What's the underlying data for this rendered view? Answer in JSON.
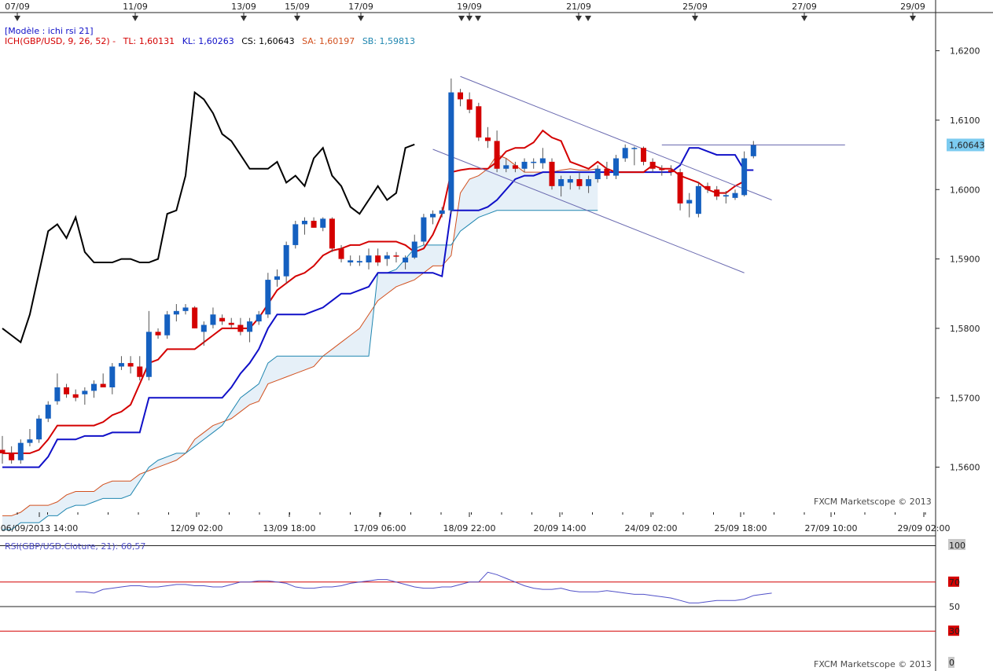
{
  "chart_data": [
    {
      "type": "candlestick",
      "instrument": "GBP/USD",
      "model_label": "[Modèle : ichi rsi 21]",
      "indicator_label": "ICH(GBP/USD, 9, 26, 52) -",
      "legend": [
        {
          "key": "TL",
          "text": "TL: 1,60131",
          "color": "#d40000"
        },
        {
          "key": "KL",
          "text": "KL: 1,60263",
          "color": "#1010c8"
        },
        {
          "key": "CS",
          "text": "CS: 1,60643",
          "color": "#000000"
        },
        {
          "key": "SA",
          "text": "SA: 1,60197",
          "color": "#d2501e"
        },
        {
          "key": "SB",
          "text": "SB: 1,59813",
          "color": "#1f86b0"
        }
      ],
      "ylim": [
        1.5535,
        1.6255
      ],
      "yticks": [
        "1,6200",
        "1,6100",
        "1,6000",
        "1,5900",
        "1,5800",
        "1,5700",
        "1,5600"
      ],
      "ytick_values": [
        1.62,
        1.61,
        1.6,
        1.59,
        1.58,
        1.57,
        1.56
      ],
      "current_price_label": "1,60643",
      "current_price": 1.60643,
      "top_dates": [
        "07/09",
        "11/09",
        "13/09",
        "15/09",
        "17/09",
        "19/09",
        "21/09",
        "25/09",
        "27/09",
        "29/09"
      ],
      "bottom_dates": [
        "06/09/2013 14:00",
        "12/09 02:00",
        "13/09 18:00",
        "17/09 06:00",
        "18/09 22:00",
        "20/09 14:00",
        "24/09 02:00",
        "25/09 18:00",
        "27/09 10:00",
        "29/09 02:00"
      ],
      "watermark": "FXCM Marketscope © 2013",
      "candles": [
        {
          "o": 1.5625,
          "h": 1.5645,
          "l": 1.5605,
          "c": 1.562
        },
        {
          "o": 1.562,
          "h": 1.563,
          "l": 1.5605,
          "c": 1.561
        },
        {
          "o": 1.561,
          "h": 1.564,
          "l": 1.5605,
          "c": 1.5635
        },
        {
          "o": 1.5635,
          "h": 1.5655,
          "l": 1.563,
          "c": 1.564
        },
        {
          "o": 1.564,
          "h": 1.5675,
          "l": 1.5635,
          "c": 1.567
        },
        {
          "o": 1.567,
          "h": 1.5695,
          "l": 1.5665,
          "c": 1.569
        },
        {
          "o": 1.5695,
          "h": 1.5735,
          "l": 1.569,
          "c": 1.5715
        },
        {
          "o": 1.5715,
          "h": 1.572,
          "l": 1.57,
          "c": 1.5705
        },
        {
          "o": 1.5705,
          "h": 1.5712,
          "l": 1.5695,
          "c": 1.57
        },
        {
          "o": 1.5705,
          "h": 1.5715,
          "l": 1.569,
          "c": 1.571
        },
        {
          "o": 1.571,
          "h": 1.5725,
          "l": 1.57,
          "c": 1.572
        },
        {
          "o": 1.572,
          "h": 1.5735,
          "l": 1.5715,
          "c": 1.5715
        },
        {
          "o": 1.5715,
          "h": 1.575,
          "l": 1.5705,
          "c": 1.5745
        },
        {
          "o": 1.5745,
          "h": 1.576,
          "l": 1.574,
          "c": 1.575
        },
        {
          "o": 1.575,
          "h": 1.576,
          "l": 1.5735,
          "c": 1.5745
        },
        {
          "o": 1.5745,
          "h": 1.576,
          "l": 1.5725,
          "c": 1.573
        },
        {
          "o": 1.573,
          "h": 1.5825,
          "l": 1.5725,
          "c": 1.5795
        },
        {
          "o": 1.5795,
          "h": 1.58,
          "l": 1.5785,
          "c": 1.579
        },
        {
          "o": 1.579,
          "h": 1.5825,
          "l": 1.5785,
          "c": 1.582
        },
        {
          "o": 1.582,
          "h": 1.5835,
          "l": 1.581,
          "c": 1.5825
        },
        {
          "o": 1.5825,
          "h": 1.5835,
          "l": 1.582,
          "c": 1.583
        },
        {
          "o": 1.583,
          "h": 1.5832,
          "l": 1.58,
          "c": 1.58
        },
        {
          "o": 1.5795,
          "h": 1.581,
          "l": 1.5775,
          "c": 1.5805
        },
        {
          "o": 1.5805,
          "h": 1.583,
          "l": 1.58,
          "c": 1.582
        },
        {
          "o": 1.5815,
          "h": 1.582,
          "l": 1.5805,
          "c": 1.581
        },
        {
          "o": 1.5808,
          "h": 1.5815,
          "l": 1.58,
          "c": 1.5805
        },
        {
          "o": 1.5805,
          "h": 1.5815,
          "l": 1.579,
          "c": 1.5795
        },
        {
          "o": 1.5795,
          "h": 1.5815,
          "l": 1.578,
          "c": 1.581
        },
        {
          "o": 1.581,
          "h": 1.5825,
          "l": 1.5805,
          "c": 1.582
        },
        {
          "o": 1.582,
          "h": 1.588,
          "l": 1.5815,
          "c": 1.587
        },
        {
          "o": 1.587,
          "h": 1.5885,
          "l": 1.586,
          "c": 1.5875
        },
        {
          "o": 1.5875,
          "h": 1.5925,
          "l": 1.5865,
          "c": 1.592
        },
        {
          "o": 1.592,
          "h": 1.5955,
          "l": 1.5915,
          "c": 1.595
        },
        {
          "o": 1.595,
          "h": 1.596,
          "l": 1.5935,
          "c": 1.5955
        },
        {
          "o": 1.5955,
          "h": 1.596,
          "l": 1.5945,
          "c": 1.5945
        },
        {
          "o": 1.5945,
          "h": 1.596,
          "l": 1.594,
          "c": 1.5958
        },
        {
          "o": 1.5958,
          "h": 1.596,
          "l": 1.591,
          "c": 1.5915
        },
        {
          "o": 1.5915,
          "h": 1.592,
          "l": 1.5895,
          "c": 1.59
        },
        {
          "o": 1.5895,
          "h": 1.5905,
          "l": 1.589,
          "c": 1.5898
        },
        {
          "o": 1.5895,
          "h": 1.5905,
          "l": 1.589,
          "c": 1.5897
        },
        {
          "o": 1.5895,
          "h": 1.5915,
          "l": 1.5885,
          "c": 1.5905
        },
        {
          "o": 1.5905,
          "h": 1.5915,
          "l": 1.589,
          "c": 1.5895
        },
        {
          "o": 1.59,
          "h": 1.591,
          "l": 1.589,
          "c": 1.5905
        },
        {
          "o": 1.5905,
          "h": 1.591,
          "l": 1.5895,
          "c": 1.5904
        },
        {
          "o": 1.5895,
          "h": 1.5905,
          "l": 1.5885,
          "c": 1.5902
        },
        {
          "o": 1.5902,
          "h": 1.5935,
          "l": 1.59,
          "c": 1.5925
        },
        {
          "o": 1.5925,
          "h": 1.5965,
          "l": 1.592,
          "c": 1.596
        },
        {
          "o": 1.596,
          "h": 1.597,
          "l": 1.595,
          "c": 1.5965
        },
        {
          "o": 1.5965,
          "h": 1.5975,
          "l": 1.596,
          "c": 1.597
        },
        {
          "o": 1.597,
          "h": 1.616,
          "l": 1.5965,
          "c": 1.614
        },
        {
          "o": 1.614,
          "h": 1.6145,
          "l": 1.612,
          "c": 1.613
        },
        {
          "o": 1.613,
          "h": 1.614,
          "l": 1.611,
          "c": 1.6115
        },
        {
          "o": 1.612,
          "h": 1.6125,
          "l": 1.607,
          "c": 1.6075
        },
        {
          "o": 1.6075,
          "h": 1.609,
          "l": 1.606,
          "c": 1.607
        },
        {
          "o": 1.607,
          "h": 1.6085,
          "l": 1.6025,
          "c": 1.603
        },
        {
          "o": 1.603,
          "h": 1.6045,
          "l": 1.6025,
          "c": 1.6035
        },
        {
          "o": 1.6035,
          "h": 1.604,
          "l": 1.6025,
          "c": 1.603
        },
        {
          "o": 1.603,
          "h": 1.6045,
          "l": 1.6025,
          "c": 1.604
        },
        {
          "o": 1.604,
          "h": 1.6045,
          "l": 1.603,
          "c": 1.604
        },
        {
          "o": 1.6038,
          "h": 1.606,
          "l": 1.603,
          "c": 1.6045
        },
        {
          "o": 1.604,
          "h": 1.6045,
          "l": 1.6,
          "c": 1.6005
        },
        {
          "o": 1.6005,
          "h": 1.602,
          "l": 1.599,
          "c": 1.6015
        },
        {
          "o": 1.601,
          "h": 1.602,
          "l": 1.6,
          "c": 1.6015
        },
        {
          "o": 1.6015,
          "h": 1.6025,
          "l": 1.6,
          "c": 1.6005
        },
        {
          "o": 1.6005,
          "h": 1.602,
          "l": 1.5995,
          "c": 1.6015
        },
        {
          "o": 1.6015,
          "h": 1.6035,
          "l": 1.601,
          "c": 1.603
        },
        {
          "o": 1.603,
          "h": 1.604,
          "l": 1.6015,
          "c": 1.602
        },
        {
          "o": 1.602,
          "h": 1.605,
          "l": 1.6015,
          "c": 1.6045
        },
        {
          "o": 1.6045,
          "h": 1.6065,
          "l": 1.604,
          "c": 1.606
        },
        {
          "o": 1.606,
          "h": 1.6062,
          "l": 1.6035,
          "c": 1.606
        },
        {
          "o": 1.606,
          "h": 1.6062,
          "l": 1.6035,
          "c": 1.604
        },
        {
          "o": 1.604,
          "h": 1.6045,
          "l": 1.6025,
          "c": 1.603
        },
        {
          "o": 1.603,
          "h": 1.6035,
          "l": 1.602,
          "c": 1.6028
        },
        {
          "o": 1.6028,
          "h": 1.6035,
          "l": 1.602,
          "c": 1.6025
        },
        {
          "o": 1.6025,
          "h": 1.603,
          "l": 1.597,
          "c": 1.598
        },
        {
          "o": 1.598,
          "h": 1.5995,
          "l": 1.596,
          "c": 1.5985
        },
        {
          "o": 1.5965,
          "h": 1.601,
          "l": 1.596,
          "c": 1.6005
        },
        {
          "o": 1.6005,
          "h": 1.601,
          "l": 1.5995,
          "c": 1.6
        },
        {
          "o": 1.6,
          "h": 1.6005,
          "l": 1.5985,
          "c": 1.599
        },
        {
          "o": 1.599,
          "h": 1.5998,
          "l": 1.598,
          "c": 1.5992
        },
        {
          "o": 1.5988,
          "h": 1.6,
          "l": 1.5985,
          "c": 1.5995
        },
        {
          "o": 1.5992,
          "h": 1.6055,
          "l": 1.599,
          "c": 1.6045
        },
        {
          "o": 1.6048,
          "h": 1.607,
          "l": 1.6045,
          "c": 1.6064
        }
      ],
      "tenkan": [
        1.562,
        1.562,
        1.562,
        1.562,
        1.5625,
        1.564,
        1.566,
        1.566,
        1.566,
        1.566,
        1.566,
        1.5665,
        1.5675,
        1.568,
        1.569,
        1.572,
        1.575,
        1.5755,
        1.577,
        1.577,
        1.577,
        1.577,
        1.578,
        1.579,
        1.58,
        1.58,
        1.58,
        1.58,
        1.5815,
        1.5835,
        1.5855,
        1.5865,
        1.5875,
        1.588,
        1.589,
        1.5905,
        1.5912,
        1.5915,
        1.592,
        1.592,
        1.5925,
        1.5925,
        1.5925,
        1.5925,
        1.592,
        1.591,
        1.5915,
        1.5935,
        1.5965,
        1.6025,
        1.6028,
        1.603,
        1.603,
        1.603,
        1.604,
        1.6055,
        1.606,
        1.606,
        1.6068,
        1.6085,
        1.6075,
        1.607,
        1.604,
        1.6035,
        1.603,
        1.604,
        1.603,
        1.6025,
        1.6025,
        1.6025,
        1.6025,
        1.6035,
        1.603,
        1.603,
        1.602,
        1.6015,
        1.601,
        1.6,
        1.5995,
        1.5995,
        1.6005,
        1.6012
      ],
      "kijun": [
        1.56,
        1.56,
        1.56,
        1.56,
        1.56,
        1.5615,
        1.564,
        1.564,
        1.564,
        1.5645,
        1.5645,
        1.5645,
        1.565,
        1.565,
        1.565,
        1.565,
        1.57,
        1.57,
        1.57,
        1.57,
        1.57,
        1.57,
        1.57,
        1.57,
        1.57,
        1.5715,
        1.5735,
        1.575,
        1.577,
        1.58,
        1.582,
        1.582,
        1.582,
        1.582,
        1.5825,
        1.583,
        1.584,
        1.585,
        1.585,
        1.5855,
        1.586,
        1.588,
        1.588,
        1.588,
        1.588,
        1.588,
        1.588,
        1.588,
        1.5875,
        1.597,
        1.597,
        1.597,
        1.597,
        1.5975,
        1.5985,
        1.6,
        1.6015,
        1.602,
        1.602,
        1.6025,
        1.6025,
        1.6025,
        1.6025,
        1.6025,
        1.6025,
        1.6025,
        1.6025,
        1.6025,
        1.6025,
        1.6025,
        1.6025,
        1.6025,
        1.6025,
        1.6025,
        1.6035,
        1.606,
        1.606,
        1.6055,
        1.605,
        1.605,
        1.605,
        1.6028,
        1.6028
      ],
      "chikou": [
        1.58,
        1.579,
        1.578,
        1.582,
        1.588,
        1.594,
        1.595,
        1.593,
        1.596,
        1.591,
        1.5895,
        1.5895,
        1.5895,
        1.59,
        1.59,
        1.5895,
        1.5895,
        1.59,
        1.5965,
        1.597,
        1.602,
        1.614,
        1.613,
        1.611,
        1.608,
        1.607,
        1.605,
        1.603,
        1.603,
        1.603,
        1.604,
        1.601,
        1.602,
        1.6005,
        1.6045,
        1.606,
        1.602,
        1.6005,
        1.5975,
        1.5965,
        1.5985,
        1.6005,
        1.5985,
        1.5995,
        1.606,
        1.6065
      ],
      "senkou_a": [
        1.553,
        1.553,
        1.5535,
        1.5545,
        1.5545,
        1.5545,
        1.555,
        1.556,
        1.5565,
        1.5565,
        1.5565,
        1.5575,
        1.558,
        1.558,
        1.558,
        1.559,
        1.5595,
        1.56,
        1.5605,
        1.561,
        1.562,
        1.564,
        1.565,
        1.566,
        1.5665,
        1.567,
        1.568,
        1.569,
        1.5695,
        1.572,
        1.5725,
        1.573,
        1.5735,
        1.574,
        1.5745,
        1.576,
        1.577,
        1.578,
        1.579,
        1.58,
        1.582,
        1.584,
        1.585,
        1.586,
        1.5865,
        1.587,
        1.588,
        1.589,
        1.589,
        1.5905,
        1.5995,
        1.6015,
        1.602,
        1.603,
        1.605,
        1.6045,
        1.6035,
        1.6025,
        1.6025,
        1.6025,
        1.6025,
        1.6028,
        1.603,
        1.6028,
        1.6028,
        1.603
      ],
      "senkou_b": [
        1.551,
        1.551,
        1.552,
        1.552,
        1.552,
        1.553,
        1.553,
        1.554,
        1.5545,
        1.5545,
        1.555,
        1.5555,
        1.5555,
        1.5555,
        1.556,
        1.558,
        1.56,
        1.561,
        1.5615,
        1.562,
        1.562,
        1.563,
        1.564,
        1.565,
        1.566,
        1.568,
        1.57,
        1.571,
        1.572,
        1.575,
        1.576,
        1.576,
        1.576,
        1.576,
        1.576,
        1.576,
        1.576,
        1.576,
        1.576,
        1.576,
        1.576,
        1.588,
        1.588,
        1.5885,
        1.59,
        1.5915,
        1.592,
        1.592,
        1.592,
        1.592,
        1.594,
        1.595,
        1.596,
        1.5965,
        1.597,
        1.597,
        1.597,
        1.597,
        1.597,
        1.597,
        1.597,
        1.597,
        1.597,
        1.597,
        1.597,
        1.597
      ]
    },
    {
      "type": "line",
      "label": "RSI(GBP/USD.Cloture, 21): 60,57",
      "ylim": [
        0,
        100
      ],
      "levels": [
        {
          "v": 100,
          "label": "100"
        },
        {
          "v": 70,
          "label": "70"
        },
        {
          "v": 50,
          "label": "50"
        },
        {
          "v": 30,
          "label": "30"
        },
        {
          "v": 0,
          "label": "0"
        }
      ],
      "values": [
        62,
        62,
        61,
        64,
        65,
        66,
        67,
        67,
        66,
        66,
        67,
        68,
        68,
        67,
        67,
        66,
        66,
        68,
        70,
        70,
        71,
        71,
        70,
        69,
        66,
        65,
        65,
        66,
        66,
        67,
        69,
        70,
        71,
        72,
        72,
        70,
        68,
        66,
        65,
        65,
        66,
        66,
        68,
        70,
        70,
        78,
        76,
        73,
        70,
        67,
        65,
        64,
        64,
        65,
        63,
        62,
        62,
        62,
        63,
        62,
        61,
        60,
        60,
        59,
        58,
        57,
        55,
        53,
        53,
        54,
        55,
        55,
        55,
        56,
        59,
        60,
        61
      ]
    }
  ]
}
